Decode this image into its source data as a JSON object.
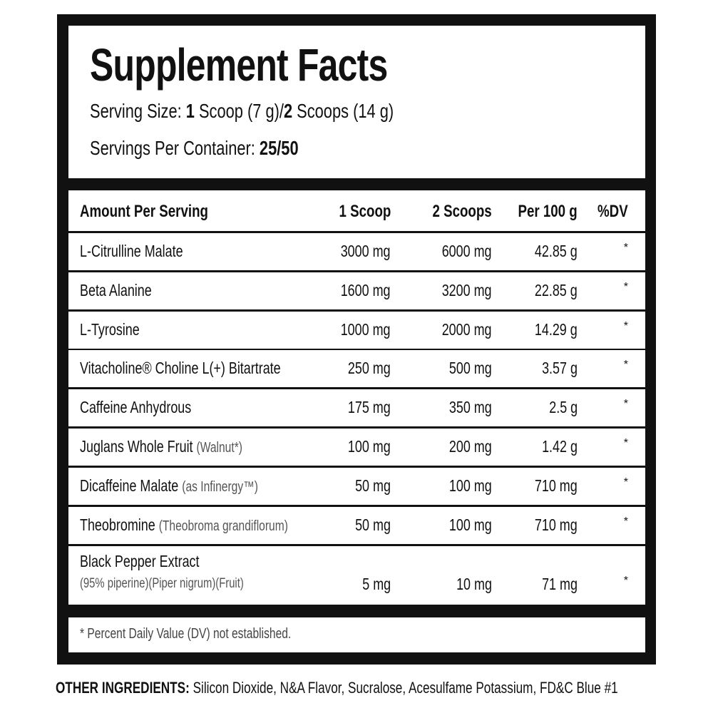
{
  "title": "Supplement Facts",
  "serving_size": {
    "label": "Serving Size:",
    "v1": "1",
    "t1": "Scoop (7 g)/",
    "v2": "2",
    "t2": "Scoops (14 g)"
  },
  "servings_per_container": {
    "label": "Servings Per Container:",
    "value": "25/50"
  },
  "table": {
    "headers": [
      "Amount Per Serving",
      "1 Scoop",
      "2 Scoops",
      "Per 100 g",
      "%DV"
    ],
    "rows": [
      {
        "name": "L-Citrulline Malate",
        "note": "",
        "s1": "3000 mg",
        "s2": "6000 mg",
        "p100": "42.85 g",
        "dv": "*"
      },
      {
        "name": "Beta Alanine",
        "note": "",
        "s1": "1600 mg",
        "s2": "3200 mg",
        "p100": "22.85 g",
        "dv": "*"
      },
      {
        "name": "L-Tyrosine",
        "note": "",
        "s1": "1000 mg",
        "s2": "2000 mg",
        "p100": "14.29 g",
        "dv": "*"
      },
      {
        "name": "Vitacholine® Choline L(+) Bitartrate",
        "note": "",
        "s1": "250 mg",
        "s2": "500 mg",
        "p100": "3.57 g",
        "dv": "*"
      },
      {
        "name": "Caffeine Anhydrous",
        "note": "",
        "s1": "175 mg",
        "s2": "350 mg",
        "p100": "2.5 g",
        "dv": "*"
      },
      {
        "name": "Juglans Whole Fruit",
        "note": "(Walnut*)",
        "s1": "100 mg",
        "s2": "200 mg",
        "p100": "1.42 g",
        "dv": "*"
      },
      {
        "name": "Dicaffeine Malate",
        "note": "(as Infinergy™)",
        "s1": "50 mg",
        "s2": "100 mg",
        "p100": "710 mg",
        "dv": "*"
      },
      {
        "name": "Theobromine",
        "note": "(Theobroma grandiflorum)",
        "s1": "50 mg",
        "s2": "100 mg",
        "p100": "710 mg",
        "dv": "*"
      },
      {
        "name": "Black Pepper Extract",
        "note": "(95% piperine)(Piper nigrum)(Fruit)",
        "s1": "5 mg",
        "s2": "10 mg",
        "p100": "71 mg",
        "dv": "*"
      }
    ]
  },
  "footnote": "* Percent Daily Value (DV) not established.",
  "other_ingredients": {
    "label": "OTHER INGREDIENTS:",
    "value": "Silicon Dioxide, N&A Flavor, Sucralose, Acesulfame Potassium, FD&C Blue #1"
  }
}
